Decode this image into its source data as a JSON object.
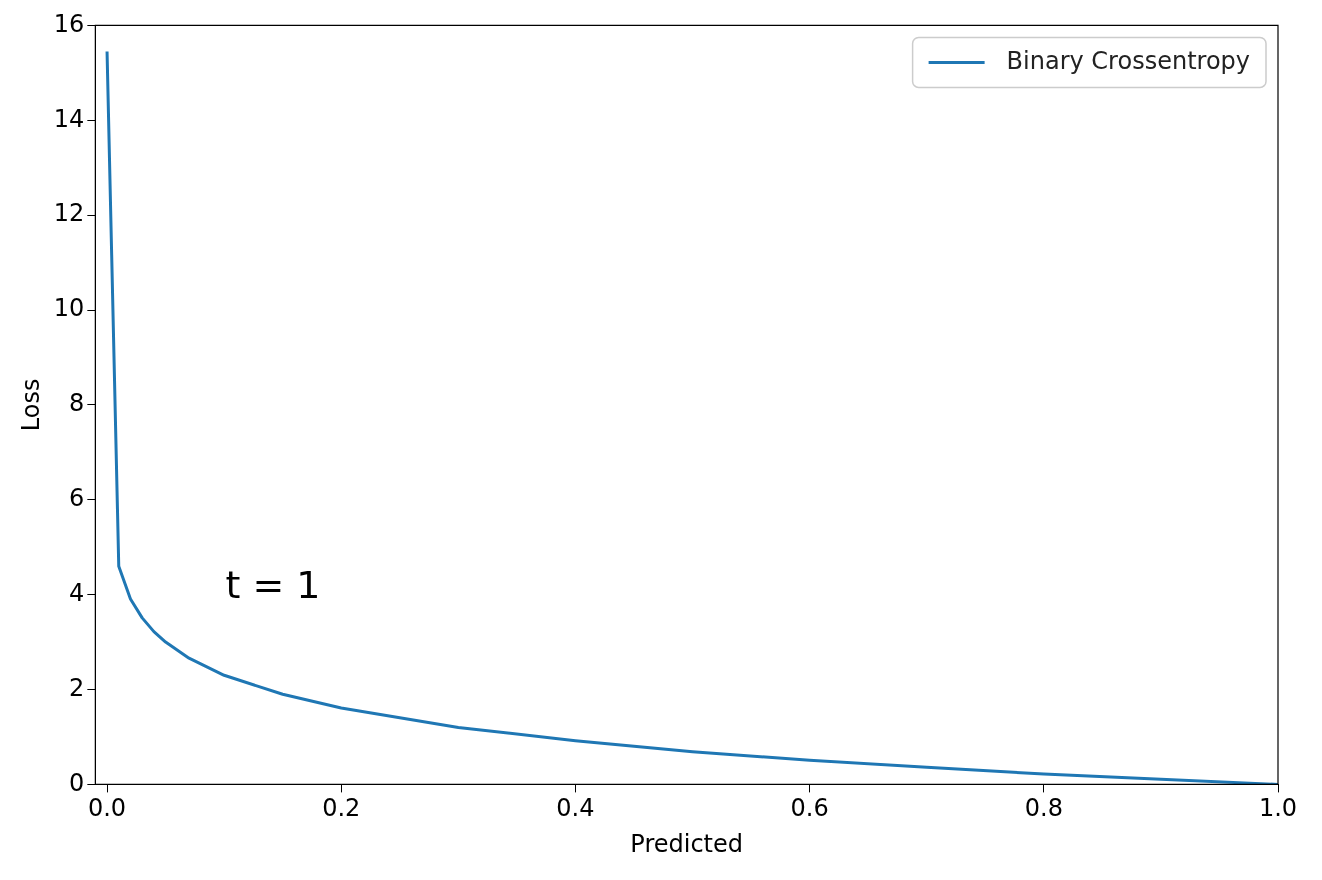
{
  "chart_data": {
    "type": "line",
    "xlabel": "Predicted",
    "ylabel": "Loss",
    "annotations": [
      "t = 1"
    ],
    "x": [
      0,
      0.01,
      0.02,
      0.03,
      0.04,
      0.05,
      0.07,
      0.1,
      0.15,
      0.2,
      0.3,
      0.4,
      0.5,
      0.6,
      0.7,
      0.8,
      0.9,
      1.0
    ],
    "series": [
      {
        "name": "Binary Crossentropy",
        "color": "#1f77b4",
        "values": [
          15.45,
          4.6,
          3.91,
          3.51,
          3.22,
          3.0,
          2.66,
          2.3,
          1.9,
          1.61,
          1.2,
          0.92,
          0.69,
          0.51,
          0.36,
          0.22,
          0.11,
          0
        ]
      }
    ],
    "xlim": [
      -0.01,
      1.0
    ],
    "xticks": [
      {
        "value": 0,
        "label": "0.0"
      },
      {
        "value": 0.2,
        "label": "0.2"
      },
      {
        "value": 0.4,
        "label": "0.4"
      },
      {
        "value": 0.6,
        "label": "0.6"
      },
      {
        "value": 0.8,
        "label": "0.8"
      },
      {
        "value": 1,
        "label": "1.0"
      }
    ],
    "ylim": [
      0,
      16
    ],
    "yticks": [
      0,
      2,
      4,
      6,
      8,
      10,
      12,
      14,
      16
    ],
    "grid": false,
    "legend": "top right",
    "marker": "none",
    "line_style": "solid"
  }
}
